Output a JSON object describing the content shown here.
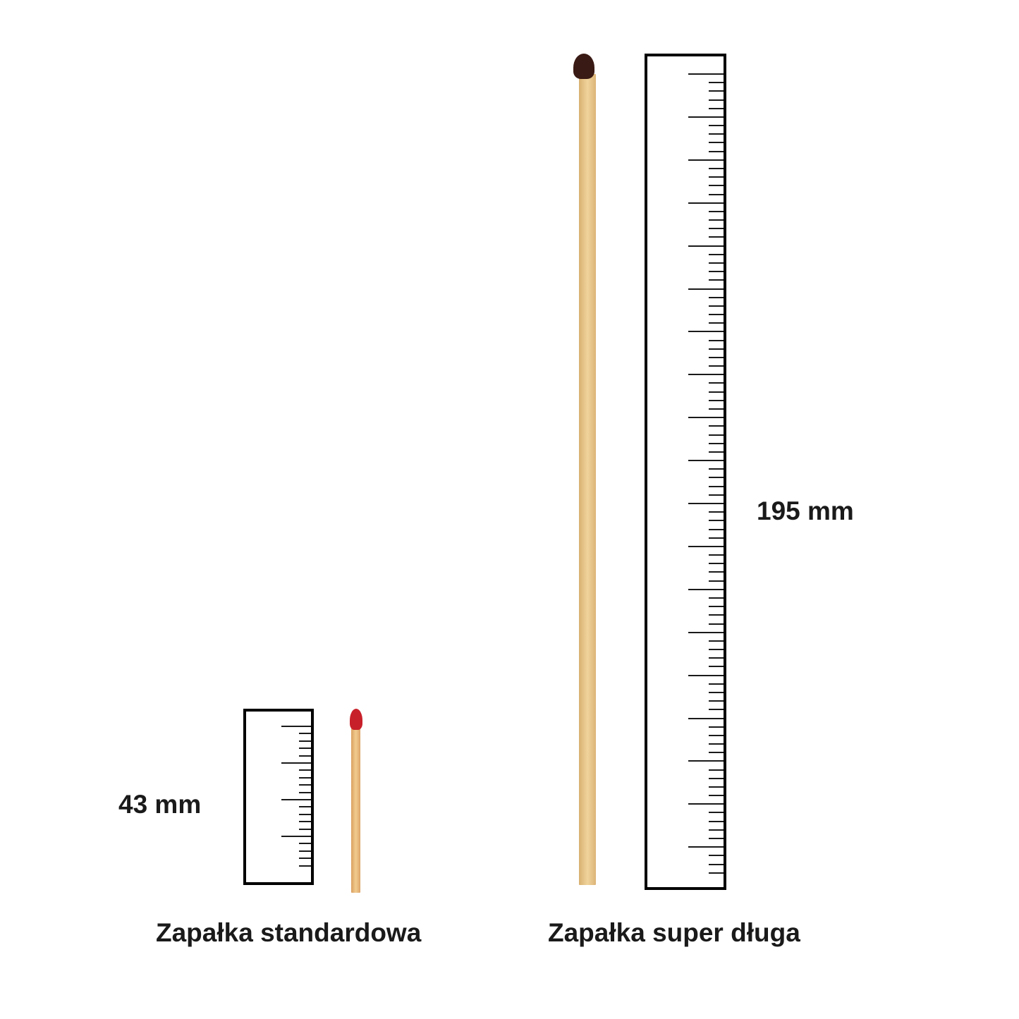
{
  "standard": {
    "label": "Zapałka standardowa",
    "length_text": "43 mm",
    "length_mm": 43,
    "head_color": "#c8202a",
    "stick_color": "#e8b878"
  },
  "long": {
    "label": "Zapałka super długa",
    "length_text": "195 mm",
    "length_mm": 195,
    "head_color": "#3a1a14",
    "stick_color": "#e6c48c"
  }
}
